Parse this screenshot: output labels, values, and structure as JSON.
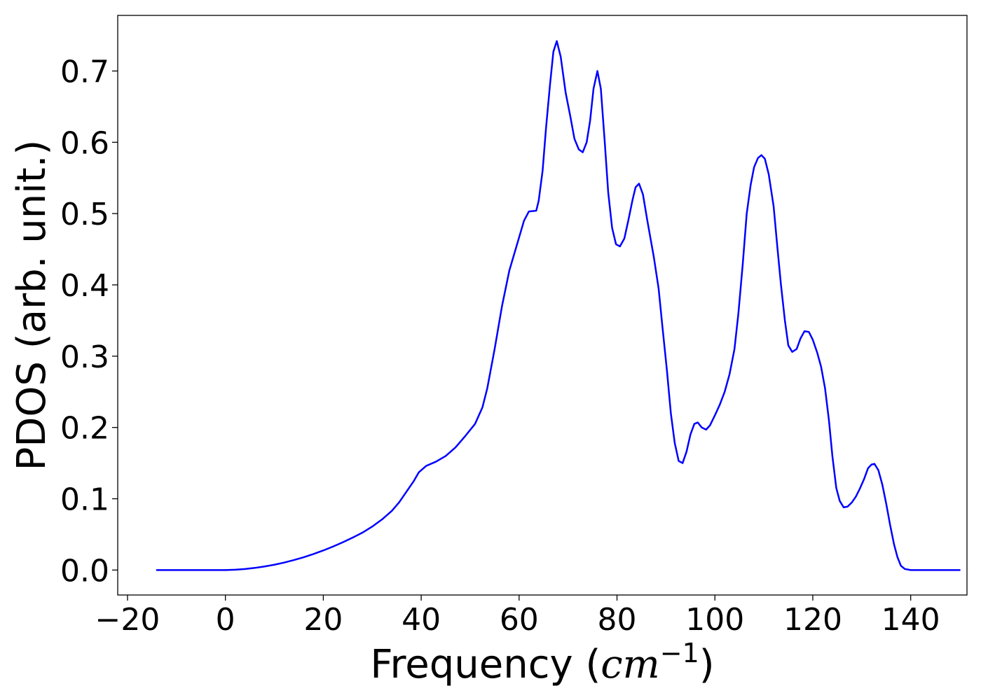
{
  "chart_data": {
    "type": "line",
    "title": "",
    "xlabel_prefix": "Frequency (",
    "xlabel_unit": "cm",
    "xlabel_exponent": "−1",
    "xlabel_suffix": ")",
    "ylabel": "PDOS (arb. unit.)",
    "xlim": [
      -22,
      151.5
    ],
    "ylim": [
      -0.035,
      0.778
    ],
    "xticks": [
      -20,
      0,
      20,
      40,
      60,
      80,
      100,
      120,
      140
    ],
    "xtick_labels": [
      "−20",
      "0",
      "20",
      "40",
      "60",
      "80",
      "100",
      "120",
      "140"
    ],
    "yticks": [
      0.0,
      0.1,
      0.2,
      0.3,
      0.4,
      0.5,
      0.6,
      0.7
    ],
    "ytick_labels": [
      "0.0",
      "0.1",
      "0.2",
      "0.3",
      "0.4",
      "0.5",
      "0.6",
      "0.7"
    ],
    "grid": false,
    "color": "#0000ff",
    "series": [
      {
        "points": [
          [
            -14,
            0.0
          ],
          [
            0,
            0.0
          ],
          [
            2,
            0.0005
          ],
          [
            4,
            0.0015
          ],
          [
            6,
            0.003
          ],
          [
            8,
            0.005
          ],
          [
            10,
            0.0075
          ],
          [
            12,
            0.0105
          ],
          [
            14,
            0.014
          ],
          [
            16,
            0.018
          ],
          [
            18,
            0.0225
          ],
          [
            20,
            0.0275
          ],
          [
            22,
            0.033
          ],
          [
            24,
            0.039
          ],
          [
            26,
            0.0455
          ],
          [
            28,
            0.0525
          ],
          [
            30,
            0.061
          ],
          [
            32,
            0.071
          ],
          [
            34,
            0.083
          ],
          [
            35.5,
            0.095
          ],
          [
            37,
            0.11
          ],
          [
            38.5,
            0.125
          ],
          [
            39.5,
            0.137
          ],
          [
            41,
            0.146
          ],
          [
            43,
            0.152
          ],
          [
            45,
            0.16
          ],
          [
            47,
            0.172
          ],
          [
            49,
            0.188
          ],
          [
            51,
            0.205
          ],
          [
            52.5,
            0.228
          ],
          [
            53.5,
            0.255
          ],
          [
            55,
            0.31
          ],
          [
            56.5,
            0.37
          ],
          [
            58,
            0.42
          ],
          [
            59.5,
            0.455
          ],
          [
            61,
            0.49
          ],
          [
            62,
            0.503
          ],
          [
            63.5,
            0.504
          ],
          [
            64,
            0.518
          ],
          [
            64.8,
            0.56
          ],
          [
            65.5,
            0.62
          ],
          [
            66.3,
            0.68
          ],
          [
            67,
            0.727
          ],
          [
            67.7,
            0.742
          ],
          [
            68.5,
            0.72
          ],
          [
            69.5,
            0.67
          ],
          [
            70.5,
            0.635
          ],
          [
            71.3,
            0.605
          ],
          [
            72.2,
            0.59
          ],
          [
            73,
            0.586
          ],
          [
            73.8,
            0.6
          ],
          [
            74.5,
            0.63
          ],
          [
            75.2,
            0.675
          ],
          [
            76,
            0.7
          ],
          [
            76.7,
            0.675
          ],
          [
            77.5,
            0.6
          ],
          [
            78.2,
            0.53
          ],
          [
            79,
            0.48
          ],
          [
            79.8,
            0.457
          ],
          [
            80.6,
            0.454
          ],
          [
            81.5,
            0.465
          ],
          [
            82.3,
            0.49
          ],
          [
            83.2,
            0.52
          ],
          [
            83.8,
            0.537
          ],
          [
            84.5,
            0.542
          ],
          [
            85.3,
            0.527
          ],
          [
            86.2,
            0.49
          ],
          [
            87.5,
            0.44
          ],
          [
            88.5,
            0.395
          ],
          [
            89.3,
            0.34
          ],
          [
            90.2,
            0.28
          ],
          [
            91,
            0.22
          ],
          [
            91.8,
            0.178
          ],
          [
            92.6,
            0.153
          ],
          [
            93.4,
            0.15
          ],
          [
            94.2,
            0.166
          ],
          [
            95,
            0.19
          ],
          [
            95.8,
            0.205
          ],
          [
            96.5,
            0.207
          ],
          [
            97.3,
            0.2
          ],
          [
            98.2,
            0.197
          ],
          [
            99,
            0.203
          ],
          [
            100,
            0.217
          ],
          [
            101,
            0.232
          ],
          [
            102,
            0.25
          ],
          [
            103,
            0.275
          ],
          [
            104,
            0.31
          ],
          [
            104.8,
            0.36
          ],
          [
            105.7,
            0.43
          ],
          [
            106.5,
            0.5
          ],
          [
            107.3,
            0.54
          ],
          [
            108,
            0.565
          ],
          [
            108.8,
            0.578
          ],
          [
            109.5,
            0.582
          ],
          [
            110.2,
            0.577
          ],
          [
            111,
            0.555
          ],
          [
            112,
            0.51
          ],
          [
            112.8,
            0.45
          ],
          [
            113.5,
            0.4
          ],
          [
            114.3,
            0.35
          ],
          [
            115,
            0.315
          ],
          [
            115.8,
            0.306
          ],
          [
            116.7,
            0.31
          ],
          [
            117.5,
            0.325
          ],
          [
            118.3,
            0.335
          ],
          [
            119.2,
            0.334
          ],
          [
            120,
            0.323
          ],
          [
            120.9,
            0.305
          ],
          [
            121.7,
            0.285
          ],
          [
            122.5,
            0.255
          ],
          [
            123.3,
            0.21
          ],
          [
            124,
            0.16
          ],
          [
            124.8,
            0.115
          ],
          [
            125.5,
            0.097
          ],
          [
            126.3,
            0.088
          ],
          [
            127.1,
            0.089
          ],
          [
            128,
            0.095
          ],
          [
            128.8,
            0.103
          ],
          [
            129.6,
            0.114
          ],
          [
            130.5,
            0.128
          ],
          [
            131.3,
            0.143
          ],
          [
            132,
            0.148
          ],
          [
            132.6,
            0.149
          ],
          [
            133.4,
            0.14
          ],
          [
            134.2,
            0.12
          ],
          [
            135,
            0.093
          ],
          [
            135.8,
            0.063
          ],
          [
            136.6,
            0.036
          ],
          [
            137.3,
            0.018
          ],
          [
            138,
            0.006
          ],
          [
            138.8,
            0.0015
          ],
          [
            140,
            0.0
          ],
          [
            150,
            0.0
          ]
        ]
      }
    ]
  }
}
